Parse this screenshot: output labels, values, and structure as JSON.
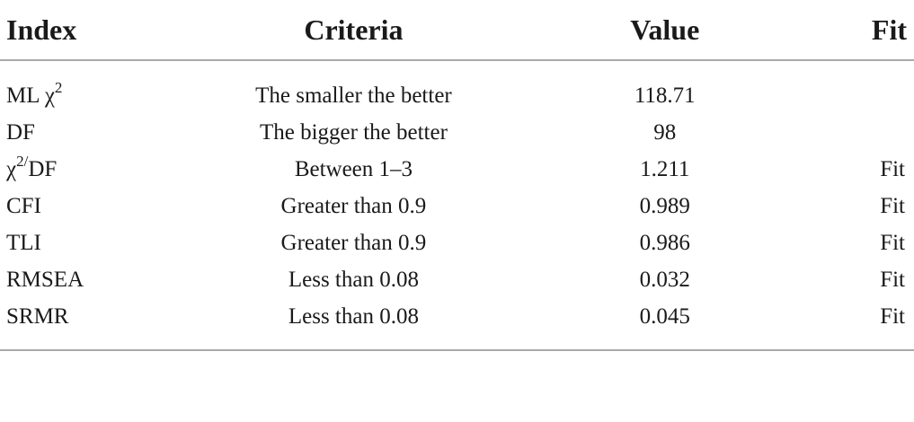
{
  "table": {
    "headers": {
      "index": "Index",
      "criteria": "Criteria",
      "value": "Value",
      "fit": "Fit"
    },
    "rows": [
      {
        "index_base": "ML χ",
        "index_sup": "2",
        "index_tail": "",
        "criteria": "The smaller the better",
        "value": "118.71",
        "fit": ""
      },
      {
        "index_base": "DF",
        "index_sup": "",
        "index_tail": "",
        "criteria": "The bigger the better",
        "value": "98",
        "fit": ""
      },
      {
        "index_base": "χ",
        "index_sup": "2/",
        "index_tail": "DF",
        "criteria": "Between 1–3",
        "value": "1.211",
        "fit": "Fit"
      },
      {
        "index_base": "CFI",
        "index_sup": "",
        "index_tail": "",
        "criteria": "Greater than 0.9",
        "value": "0.989",
        "fit": "Fit"
      },
      {
        "index_base": "TLI",
        "index_sup": "",
        "index_tail": "",
        "criteria": "Greater than 0.9",
        "value": "0.986",
        "fit": "Fit"
      },
      {
        "index_base": "RMSEA",
        "index_sup": "",
        "index_tail": "",
        "criteria": "Less than 0.08",
        "value": "0.032",
        "fit": "Fit"
      },
      {
        "index_base": "SRMR",
        "index_sup": "",
        "index_tail": "",
        "criteria": "Less than 0.08",
        "value": "0.045",
        "fit": "Fit"
      }
    ]
  }
}
